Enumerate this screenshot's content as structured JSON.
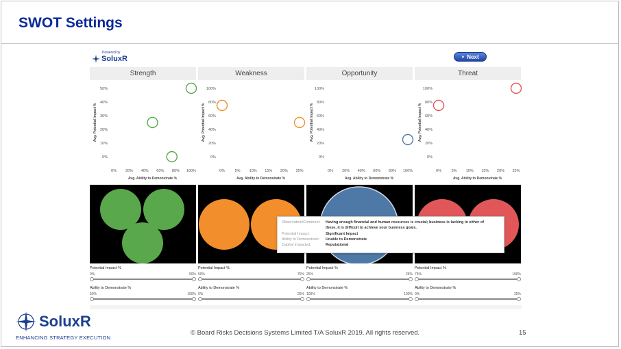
{
  "slide": {
    "title": "SWOT Settings",
    "copyright": "© Board Risks Decisions Systems Limited T/A SoluxR 2019. All rights reserved.",
    "page_number": "15"
  },
  "logo": {
    "word": "SoluxR",
    "tagline": "ENHANCING STRATEGY EXECUTION"
  },
  "powered": {
    "line1": "Powered by",
    "line2": "SoluxR"
  },
  "next_button": {
    "label": "Next"
  },
  "axis": {
    "ylabel": "Avg. Potential Impact %",
    "xlabel": "Avg. Ability to Demonstrate %"
  },
  "quadrants": [
    {
      "name": "Strength",
      "color": "#59a84b",
      "yticks": [
        "50%",
        "40%",
        "30%",
        "20%",
        "10%",
        "0%"
      ],
      "xticks": [
        "0%",
        "20%",
        "40%",
        "60%",
        "80%",
        "100%"
      ],
      "xmax": 100,
      "ymax": 50,
      "points": [
        {
          "x": 100,
          "y": 50
        },
        {
          "x": 50,
          "y": 25
        },
        {
          "x": 75,
          "y": 0
        }
      ]
    },
    {
      "name": "Weakness",
      "color": "#f28e2b",
      "yticks": [
        "100%",
        "80%",
        "60%",
        "40%",
        "20%",
        "0%"
      ],
      "xticks": [
        "0%",
        "5%",
        "10%",
        "15%",
        "20%",
        "25%"
      ],
      "xmax": 25,
      "ymax": 100,
      "points": [
        {
          "x": 0,
          "y": 75
        },
        {
          "x": 25,
          "y": 50
        }
      ]
    },
    {
      "name": "Opportunity",
      "color": "#4e79a7",
      "yticks": [
        "100%",
        "80%",
        "60%",
        "40%",
        "20%",
        "0%"
      ],
      "xticks": [
        "0%",
        "20%",
        "40%",
        "60%",
        "80%",
        "100%"
      ],
      "xmax": 100,
      "ymax": 100,
      "points": [
        {
          "x": 100,
          "y": 25
        }
      ]
    },
    {
      "name": "Threat",
      "color": "#e15759",
      "yticks": [
        "100%",
        "80%",
        "60%",
        "40%",
        "20%",
        "0%"
      ],
      "xticks": [
        "0%",
        "5%",
        "10%",
        "15%",
        "20%",
        "25%"
      ],
      "xmax": 25,
      "ymax": 100,
      "points": [
        {
          "x": 25,
          "y": 100
        },
        {
          "x": 0,
          "y": 75
        }
      ]
    }
  ],
  "tooltip": {
    "rows": [
      {
        "key": "Observation/Comment:",
        "value": "Having enough financial and human resources is crucial; business is lacking in either of"
      },
      {
        "key": "",
        "value": "these, it is difficult to achieve your business goals."
      },
      {
        "key": "Potential Impact:",
        "value": "Significant Impact"
      },
      {
        "key": "Ability to Demonstrate:",
        "value": "Unable to Demonstrate"
      },
      {
        "key": "Capital Impacted:",
        "value": "Reputational"
      }
    ]
  },
  "filters": [
    {
      "impact_label": "Potential Impact %",
      "impact_min": "0%",
      "impact_max": "50%",
      "ability_label": "Ability to Demonstrate %",
      "ability_min": "50%",
      "ability_max": "100%"
    },
    {
      "impact_label": "Potential Impact %",
      "impact_min": "50%",
      "impact_max": "75%",
      "ability_label": "Ability to Demonstrate %",
      "ability_min": "0%",
      "ability_max": "25%"
    },
    {
      "impact_label": "Potential Impact %",
      "impact_min": "25%",
      "impact_max": "25%",
      "ability_label": "Ability to Demonstrate %",
      "ability_min": "100%",
      "ability_max": "100%"
    },
    {
      "impact_label": "Potential Impact %",
      "impact_min": "75%",
      "impact_max": "100%",
      "ability_label": "Ability to Demonstrate %",
      "ability_min": "0%",
      "ability_max": "25%"
    }
  ]
}
